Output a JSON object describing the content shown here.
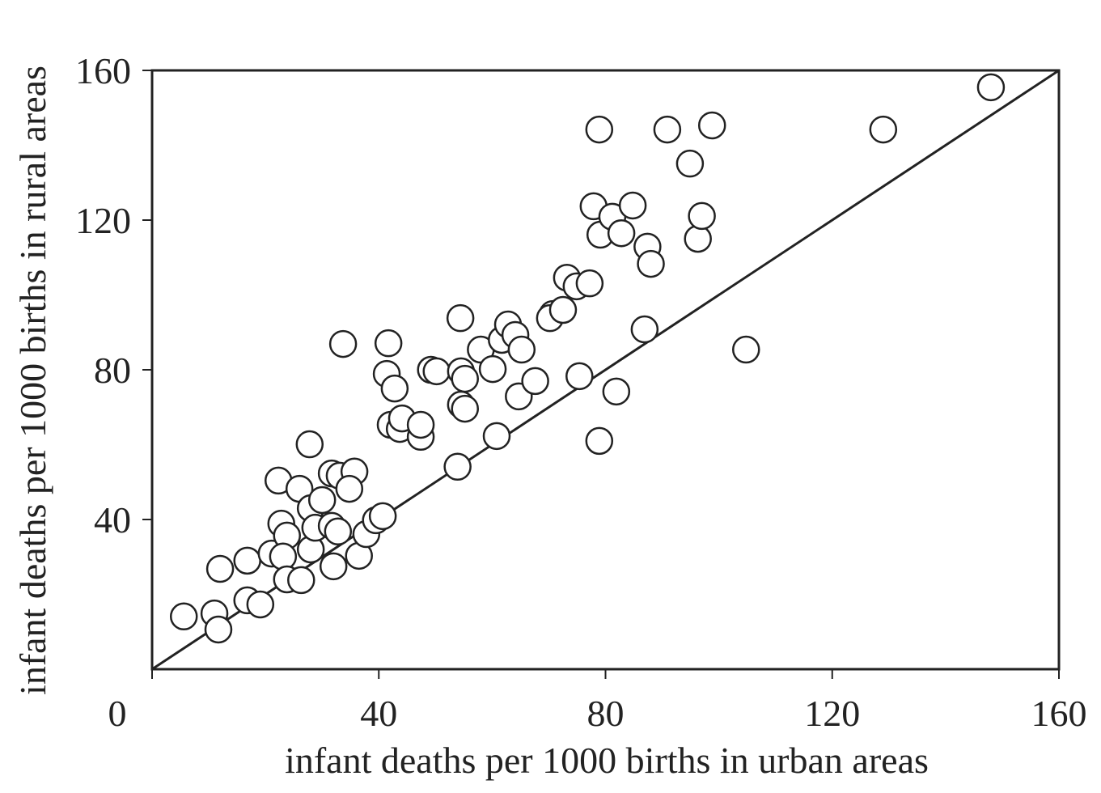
{
  "chart_data": {
    "type": "scatter",
    "xlabel": "infant deaths per 1000 births in urban areas",
    "ylabel": "infant deaths per 1000 births in rural areas",
    "xlim": [
      0,
      160
    ],
    "ylim": [
      0,
      160
    ],
    "xticks": [
      0,
      40,
      80,
      120,
      160
    ],
    "yticks": [
      40,
      80,
      120,
      160
    ],
    "reference_line": {
      "x": [
        0,
        160
      ],
      "y": [
        0,
        160
      ]
    },
    "x": [
      5.6,
      11.0,
      11.7,
      12.0,
      16.8,
      16.8,
      19.1,
      21.1,
      22.3,
      22.8,
      23.8,
      23.1,
      23.8,
      26.3,
      26.0,
      27.8,
      28.0,
      28.0,
      28.8,
      30.0,
      31.7,
      33.1,
      35.7,
      34.8,
      31.7,
      32.8,
      32.0,
      36.5,
      37.8,
      39.5,
      40.7,
      33.7,
      41.7,
      41.4,
      42.8,
      42.1,
      43.7,
      44.1,
      47.4,
      47.4,
      49.2,
      50.2,
      54.4,
      54.5,
      55.2,
      54.5,
      55.2,
      53.9,
      58.0,
      60.1,
      60.8,
      61.7,
      62.8,
      64.1,
      65.2,
      64.7,
      67.6,
      70.7,
      70.2,
      72.5,
      73.2,
      74.9,
      77.2,
      75.4,
      78.9,
      77.9,
      79.1,
      81.2,
      82.8,
      84.8,
      81.9,
      78.9,
      86.9,
      87.4,
      88.0,
      90.9,
      94.9,
      96.3,
      97.0,
      98.8,
      104.8,
      129.0,
      148.0
    ],
    "y": [
      14.1,
      14.9,
      10.6,
      26.8,
      29.0,
      18.4,
      17.3,
      30.9,
      50.4,
      38.9,
      35.7,
      30.1,
      24.0,
      23.8,
      48.2,
      60.1,
      43.0,
      32.0,
      37.8,
      45.2,
      52.3,
      51.7,
      52.8,
      48.2,
      38.3,
      36.8,
      27.5,
      30.3,
      36.1,
      39.8,
      40.9,
      86.9,
      87.1,
      78.9,
      75.0,
      65.3,
      64.2,
      67.0,
      62.1,
      65.3,
      80.0,
      79.6,
      93.8,
      79.6,
      77.6,
      70.7,
      69.6,
      54.1,
      85.4,
      80.2,
      62.3,
      88.0,
      92.1,
      89.3,
      85.4,
      72.9,
      77.0,
      94.9,
      93.8,
      96.0,
      104.6,
      102.3,
      103.1,
      78.3,
      144.2,
      123.7,
      116.1,
      120.9,
      116.5,
      123.9,
      74.2,
      61.0,
      90.8,
      112.9,
      108.3,
      144.2,
      135.1,
      115.0,
      121.1,
      145.3,
      85.4,
      144.2,
      155.5
    ]
  }
}
